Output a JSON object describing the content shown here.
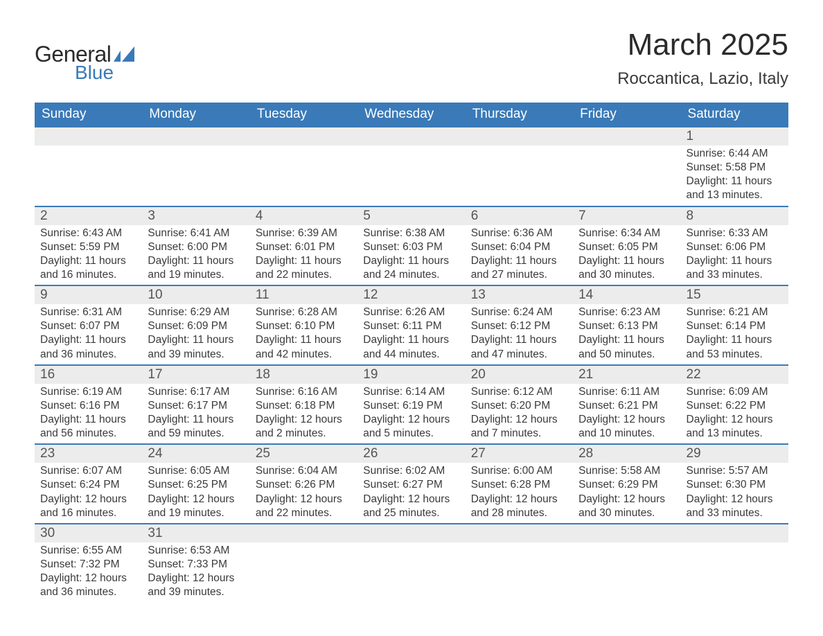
{
  "brand": {
    "general": "General",
    "blue": "Blue",
    "accent_color": "#3a7ab8"
  },
  "title": "March 2025",
  "location": "Roccantica, Lazio, Italy",
  "day_headers": [
    "Sunday",
    "Monday",
    "Tuesday",
    "Wednesday",
    "Thursday",
    "Friday",
    "Saturday"
  ],
  "colors": {
    "header_bg": "#3a7ab8",
    "header_text": "#ffffff",
    "daynum_bg": "#ececec",
    "row_divider": "#3a7ab8",
    "body_text": "#3a3a3a",
    "page_bg": "#ffffff"
  },
  "fonts": {
    "title_size_pt": 33,
    "location_size_pt": 18,
    "header_size_pt": 14,
    "daynum_size_pt": 14,
    "body_size_pt": 12,
    "family": "Arial"
  },
  "weeks": [
    [
      null,
      null,
      null,
      null,
      null,
      null,
      {
        "n": "1",
        "sr": "Sunrise: 6:44 AM",
        "ss": "Sunset: 5:58 PM",
        "d1": "Daylight: 11 hours",
        "d2": "and 13 minutes."
      }
    ],
    [
      {
        "n": "2",
        "sr": "Sunrise: 6:43 AM",
        "ss": "Sunset: 5:59 PM",
        "d1": "Daylight: 11 hours",
        "d2": "and 16 minutes."
      },
      {
        "n": "3",
        "sr": "Sunrise: 6:41 AM",
        "ss": "Sunset: 6:00 PM",
        "d1": "Daylight: 11 hours",
        "d2": "and 19 minutes."
      },
      {
        "n": "4",
        "sr": "Sunrise: 6:39 AM",
        "ss": "Sunset: 6:01 PM",
        "d1": "Daylight: 11 hours",
        "d2": "and 22 minutes."
      },
      {
        "n": "5",
        "sr": "Sunrise: 6:38 AM",
        "ss": "Sunset: 6:03 PM",
        "d1": "Daylight: 11 hours",
        "d2": "and 24 minutes."
      },
      {
        "n": "6",
        "sr": "Sunrise: 6:36 AM",
        "ss": "Sunset: 6:04 PM",
        "d1": "Daylight: 11 hours",
        "d2": "and 27 minutes."
      },
      {
        "n": "7",
        "sr": "Sunrise: 6:34 AM",
        "ss": "Sunset: 6:05 PM",
        "d1": "Daylight: 11 hours",
        "d2": "and 30 minutes."
      },
      {
        "n": "8",
        "sr": "Sunrise: 6:33 AM",
        "ss": "Sunset: 6:06 PM",
        "d1": "Daylight: 11 hours",
        "d2": "and 33 minutes."
      }
    ],
    [
      {
        "n": "9",
        "sr": "Sunrise: 6:31 AM",
        "ss": "Sunset: 6:07 PM",
        "d1": "Daylight: 11 hours",
        "d2": "and 36 minutes."
      },
      {
        "n": "10",
        "sr": "Sunrise: 6:29 AM",
        "ss": "Sunset: 6:09 PM",
        "d1": "Daylight: 11 hours",
        "d2": "and 39 minutes."
      },
      {
        "n": "11",
        "sr": "Sunrise: 6:28 AM",
        "ss": "Sunset: 6:10 PM",
        "d1": "Daylight: 11 hours",
        "d2": "and 42 minutes."
      },
      {
        "n": "12",
        "sr": "Sunrise: 6:26 AM",
        "ss": "Sunset: 6:11 PM",
        "d1": "Daylight: 11 hours",
        "d2": "and 44 minutes."
      },
      {
        "n": "13",
        "sr": "Sunrise: 6:24 AM",
        "ss": "Sunset: 6:12 PM",
        "d1": "Daylight: 11 hours",
        "d2": "and 47 minutes."
      },
      {
        "n": "14",
        "sr": "Sunrise: 6:23 AM",
        "ss": "Sunset: 6:13 PM",
        "d1": "Daylight: 11 hours",
        "d2": "and 50 minutes."
      },
      {
        "n": "15",
        "sr": "Sunrise: 6:21 AM",
        "ss": "Sunset: 6:14 PM",
        "d1": "Daylight: 11 hours",
        "d2": "and 53 minutes."
      }
    ],
    [
      {
        "n": "16",
        "sr": "Sunrise: 6:19 AM",
        "ss": "Sunset: 6:16 PM",
        "d1": "Daylight: 11 hours",
        "d2": "and 56 minutes."
      },
      {
        "n": "17",
        "sr": "Sunrise: 6:17 AM",
        "ss": "Sunset: 6:17 PM",
        "d1": "Daylight: 11 hours",
        "d2": "and 59 minutes."
      },
      {
        "n": "18",
        "sr": "Sunrise: 6:16 AM",
        "ss": "Sunset: 6:18 PM",
        "d1": "Daylight: 12 hours",
        "d2": "and 2 minutes."
      },
      {
        "n": "19",
        "sr": "Sunrise: 6:14 AM",
        "ss": "Sunset: 6:19 PM",
        "d1": "Daylight: 12 hours",
        "d2": "and 5 minutes."
      },
      {
        "n": "20",
        "sr": "Sunrise: 6:12 AM",
        "ss": "Sunset: 6:20 PM",
        "d1": "Daylight: 12 hours",
        "d2": "and 7 minutes."
      },
      {
        "n": "21",
        "sr": "Sunrise: 6:11 AM",
        "ss": "Sunset: 6:21 PM",
        "d1": "Daylight: 12 hours",
        "d2": "and 10 minutes."
      },
      {
        "n": "22",
        "sr": "Sunrise: 6:09 AM",
        "ss": "Sunset: 6:22 PM",
        "d1": "Daylight: 12 hours",
        "d2": "and 13 minutes."
      }
    ],
    [
      {
        "n": "23",
        "sr": "Sunrise: 6:07 AM",
        "ss": "Sunset: 6:24 PM",
        "d1": "Daylight: 12 hours",
        "d2": "and 16 minutes."
      },
      {
        "n": "24",
        "sr": "Sunrise: 6:05 AM",
        "ss": "Sunset: 6:25 PM",
        "d1": "Daylight: 12 hours",
        "d2": "and 19 minutes."
      },
      {
        "n": "25",
        "sr": "Sunrise: 6:04 AM",
        "ss": "Sunset: 6:26 PM",
        "d1": "Daylight: 12 hours",
        "d2": "and 22 minutes."
      },
      {
        "n": "26",
        "sr": "Sunrise: 6:02 AM",
        "ss": "Sunset: 6:27 PM",
        "d1": "Daylight: 12 hours",
        "d2": "and 25 minutes."
      },
      {
        "n": "27",
        "sr": "Sunrise: 6:00 AM",
        "ss": "Sunset: 6:28 PM",
        "d1": "Daylight: 12 hours",
        "d2": "and 28 minutes."
      },
      {
        "n": "28",
        "sr": "Sunrise: 5:58 AM",
        "ss": "Sunset: 6:29 PM",
        "d1": "Daylight: 12 hours",
        "d2": "and 30 minutes."
      },
      {
        "n": "29",
        "sr": "Sunrise: 5:57 AM",
        "ss": "Sunset: 6:30 PM",
        "d1": "Daylight: 12 hours",
        "d2": "and 33 minutes."
      }
    ],
    [
      {
        "n": "30",
        "sr": "Sunrise: 6:55 AM",
        "ss": "Sunset: 7:32 PM",
        "d1": "Daylight: 12 hours",
        "d2": "and 36 minutes."
      },
      {
        "n": "31",
        "sr": "Sunrise: 6:53 AM",
        "ss": "Sunset: 7:33 PM",
        "d1": "Daylight: 12 hours",
        "d2": "and 39 minutes."
      },
      null,
      null,
      null,
      null,
      null
    ]
  ]
}
